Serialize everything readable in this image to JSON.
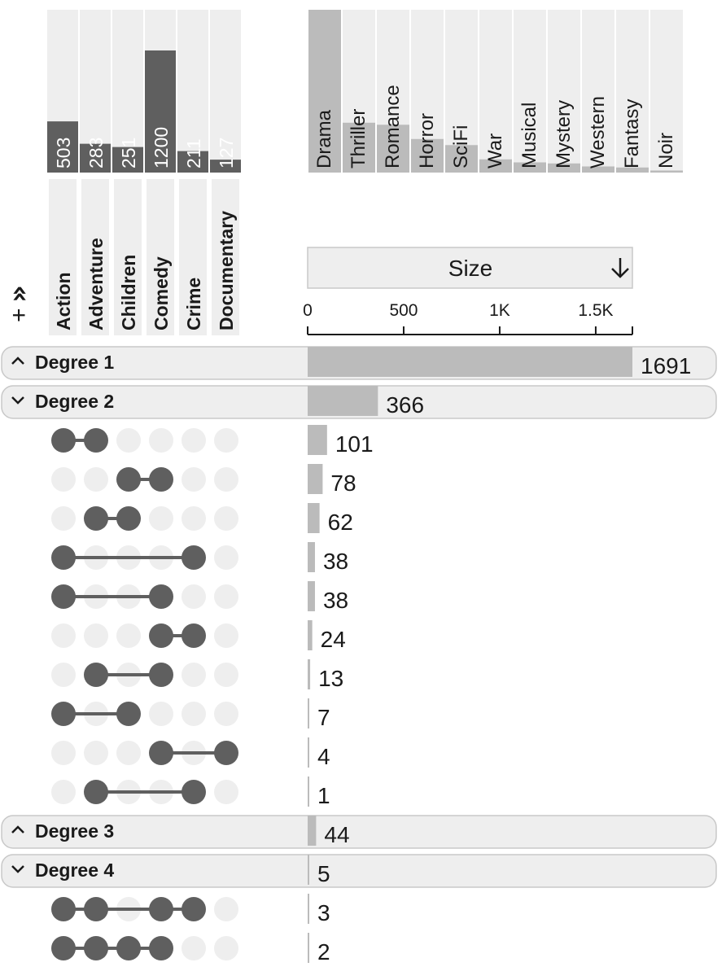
{
  "chart_data": {
    "type": "bar",
    "set_sizes": {
      "sets": [
        "Action",
        "Adventure",
        "Children",
        "Comedy",
        "Crime",
        "Documentary"
      ],
      "values": [
        503,
        283,
        251,
        1200,
        211,
        127
      ],
      "labels": [
        "503",
        "283",
        "251",
        "1200",
        "211",
        "127"
      ]
    },
    "extra_sets": {
      "names": [
        "Drama",
        "Thriller",
        "Romance",
        "Horror",
        "SciFi",
        "War",
        "Musical",
        "Mystery",
        "Western",
        "Fantasy",
        "Noir"
      ],
      "values": [
        1600,
        490,
        470,
        330,
        270,
        130,
        100,
        90,
        60,
        50,
        20
      ]
    },
    "size_axis": {
      "header": "Size",
      "sort_icon": "arrow-down-icon",
      "ticks": [
        0,
        500,
        1000,
        1500
      ],
      "tick_labels": [
        "0",
        "500",
        "1K",
        "1.5K"
      ],
      "domain": [
        0,
        1691
      ]
    },
    "rows": [
      {
        "kind": "group",
        "label": "Degree 1",
        "state": "collapsed",
        "value": 1691,
        "value_label": "1691"
      },
      {
        "kind": "group",
        "label": "Degree 2",
        "state": "expanded",
        "value": 366,
        "value_label": "366"
      },
      {
        "kind": "set",
        "members": [
          0,
          1
        ],
        "value": 101,
        "value_label": "101"
      },
      {
        "kind": "set",
        "members": [
          2,
          3
        ],
        "value": 78,
        "value_label": "78"
      },
      {
        "kind": "set",
        "members": [
          1,
          2
        ],
        "value": 62,
        "value_label": "62"
      },
      {
        "kind": "set",
        "members": [
          0,
          4
        ],
        "value": 38,
        "value_label": "38"
      },
      {
        "kind": "set",
        "members": [
          0,
          3
        ],
        "value": 38,
        "value_label": "38"
      },
      {
        "kind": "set",
        "members": [
          3,
          4
        ],
        "value": 24,
        "value_label": "24"
      },
      {
        "kind": "set",
        "members": [
          1,
          3
        ],
        "value": 13,
        "value_label": "13"
      },
      {
        "kind": "set",
        "members": [
          0,
          2
        ],
        "value": 7,
        "value_label": "7"
      },
      {
        "kind": "set",
        "members": [
          3,
          5
        ],
        "value": 4,
        "value_label": "4"
      },
      {
        "kind": "set",
        "members": [
          1,
          4
        ],
        "value": 1,
        "value_label": "1"
      },
      {
        "kind": "group",
        "label": "Degree 3",
        "state": "collapsed",
        "value": 44,
        "value_label": "44"
      },
      {
        "kind": "group",
        "label": "Degree 4",
        "state": "expanded",
        "value": 5,
        "value_label": "5"
      },
      {
        "kind": "set",
        "members": [
          0,
          1,
          3,
          4
        ],
        "value": 3,
        "value_label": "3"
      },
      {
        "kind": "set",
        "members": [
          0,
          1,
          2,
          3
        ],
        "value": 2,
        "value_label": "2"
      }
    ]
  },
  "controls": {
    "add_label": "+",
    "expand_label": "»"
  },
  "colors": {
    "bar_dark": "#5f5f5f",
    "bar_light": "#bbbbbb",
    "panel_bg": "#eeeeee",
    "dot_empty": "#eeeeee",
    "dot_filled": "#5f5f5f",
    "group_bg": "#eeeeee",
    "group_border": "#c8c8c8"
  }
}
